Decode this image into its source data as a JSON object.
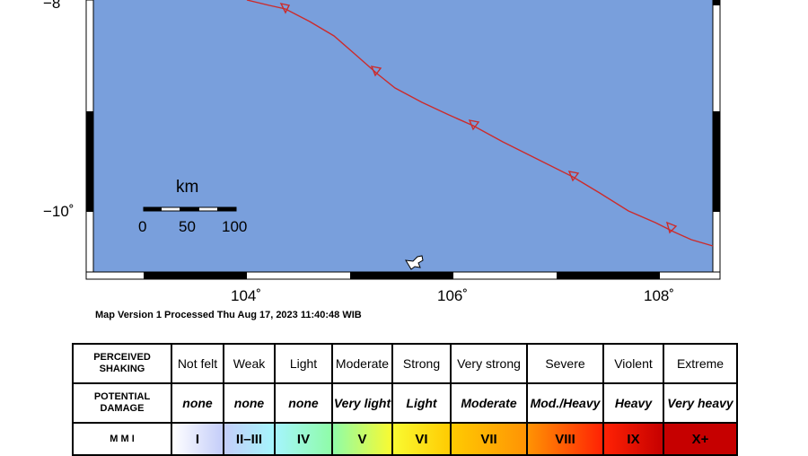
{
  "map": {
    "ocean_color": "#799fdc",
    "fault_color": "#cc2b2b",
    "lat_labels": [
      "−8˚",
      "−10˚"
    ],
    "lon_labels": [
      "104˚",
      "106˚",
      "108˚"
    ],
    "scale": {
      "title": "km",
      "ticks": [
        "0",
        "50",
        "100"
      ]
    }
  },
  "map_version": "Map Version 1 Processed Thu Aug 17, 2023 11:40:48 WIB",
  "legend": {
    "rows": [
      {
        "header": "PERCEIVED SHAKING",
        "cells": [
          "Not felt",
          "Weak",
          "Light",
          "Moderate",
          "Strong",
          "Very strong",
          "Severe",
          "Violent",
          "Extreme"
        ]
      },
      {
        "header": "POTENTIAL DAMAGE",
        "cells": [
          "none",
          "none",
          "none",
          "Very light",
          "Light",
          "Moderate",
          "Mod./Heavy",
          "Heavy",
          "Very heavy"
        ]
      },
      {
        "header": "M M I",
        "cells": [
          "I",
          "II–III",
          "IV",
          "V",
          "VI",
          "VII",
          "VIII",
          "IX",
          "X+"
        ]
      }
    ],
    "mmi_colors": [
      "#ffffff",
      "#c4cdf9",
      "#a5f5fc",
      "#8ffca8",
      "#f9fa31",
      "#ffcb02",
      "#ff9304",
      "#ff2204",
      "#c60000"
    ]
  }
}
